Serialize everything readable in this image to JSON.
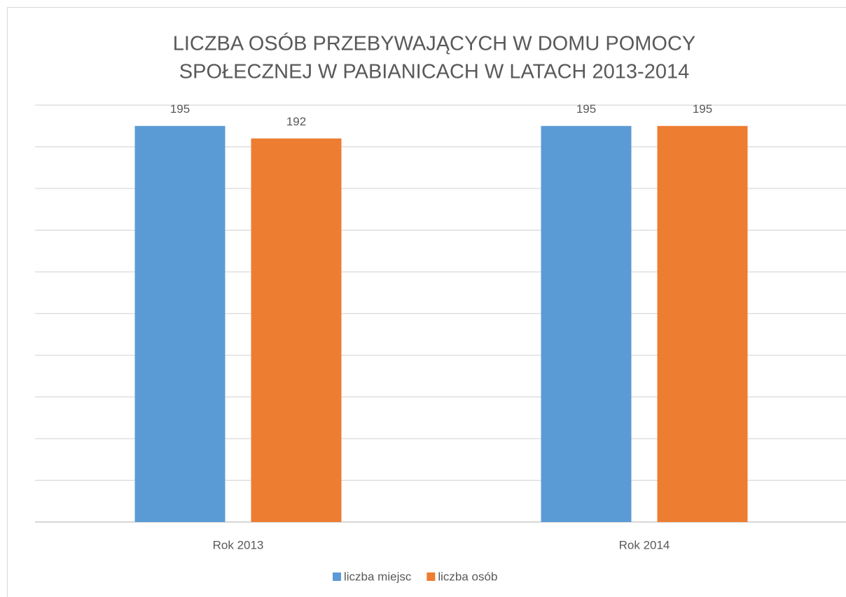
{
  "chart_data": {
    "type": "bar",
    "title": [
      "LICZBA OSÓB PRZEBYWAJĄCYCH W DOMU POMOCY",
      "SPOŁECZNEJ W PABIANICACH W LATACH 2013-2014"
    ],
    "categories": [
      "Rok 2013",
      "Rok 2014"
    ],
    "series": [
      {
        "name": "liczba miejsc",
        "color": "#5b9bd5",
        "values": [
          195,
          195
        ]
      },
      {
        "name": "liczba osób",
        "color": "#ed7d31",
        "values": [
          192,
          195
        ]
      }
    ],
    "ylim": [
      100,
      200
    ],
    "yticks": [
      100,
      110,
      120,
      130,
      140,
      150,
      160,
      170,
      180,
      190,
      200
    ],
    "grid": true,
    "legend": "bottom"
  }
}
